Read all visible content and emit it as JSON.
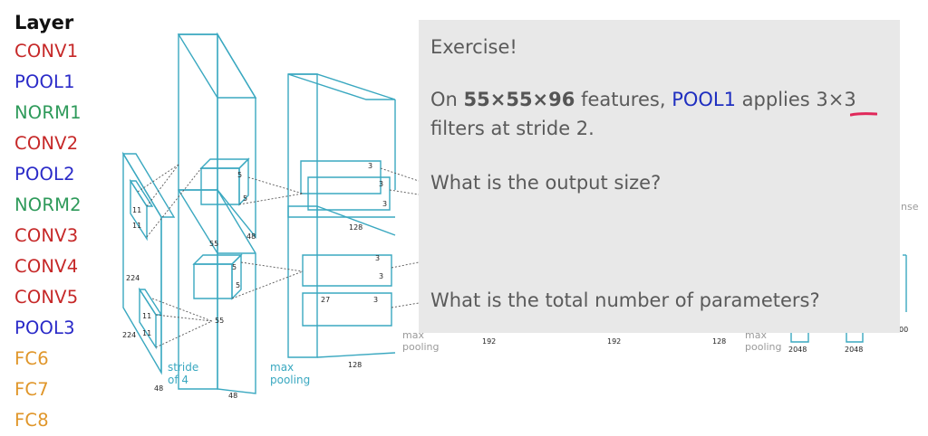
{
  "layers": {
    "title": "Layer",
    "items": [
      {
        "label": "CONV1",
        "color": "#c62828"
      },
      {
        "label": "POOL1",
        "color": "#2a2ac8"
      },
      {
        "label": "NORM1",
        "color": "#2e9a5a"
      },
      {
        "label": "CONV2",
        "color": "#c62828"
      },
      {
        "label": "POOL2",
        "color": "#2a2ac8"
      },
      {
        "label": "NORM2",
        "color": "#2e9a5a"
      },
      {
        "label": "CONV3",
        "color": "#c62828"
      },
      {
        "label": "CONV4",
        "color": "#c62828"
      },
      {
        "label": "CONV5",
        "color": "#c62828"
      },
      {
        "label": "POOL3",
        "color": "#2a2ac8"
      },
      {
        "label": "FC6",
        "color": "#e0962a"
      },
      {
        "label": "FC7",
        "color": "#e0962a"
      },
      {
        "label": "FC8",
        "color": "#e0962a"
      }
    ]
  },
  "exercise": {
    "title": "Exercise!",
    "intro_prefix": "On ",
    "dims": "55×55×96",
    "mid": " features, ",
    "layer": "POOL1",
    "suffix": " applies 3×3 filters at stride 2.",
    "question_output": "What is the output size?",
    "question_params": "What is the total number of parameters?"
  },
  "diagram": {
    "labels": {
      "input_h": "224",
      "input_w": "224",
      "k11a": "11",
      "k11b": "11",
      "k11c": "11",
      "k11d": "11",
      "stride": "stride\nof 4",
      "d48": "48",
      "c1_55a": "55",
      "c1_55b": "55",
      "k5a": "5",
      "k5b": "5",
      "k5c": "5",
      "k5d": "5",
      "c1_depth_top": "48",
      "c1_depth_bot": "48",
      "maxpool1": "max\npooling",
      "k3_1": "3",
      "k3_2": "3",
      "k3_3": "3",
      "k3_4": "3",
      "k3_5": "3",
      "k3_6": "3",
      "c2_128a": "128",
      "c2_128b": "128",
      "c2_27": "27",
      "maxpool2": "max\npooling",
      "d192a": "192",
      "d192b": "192",
      "d128": "128",
      "maxpool3": "max\npooling",
      "d2048a": "2048",
      "d2048b": "2048",
      "dense": "nse",
      "d00": "00"
    },
    "line_color": "#3aa8c0"
  }
}
